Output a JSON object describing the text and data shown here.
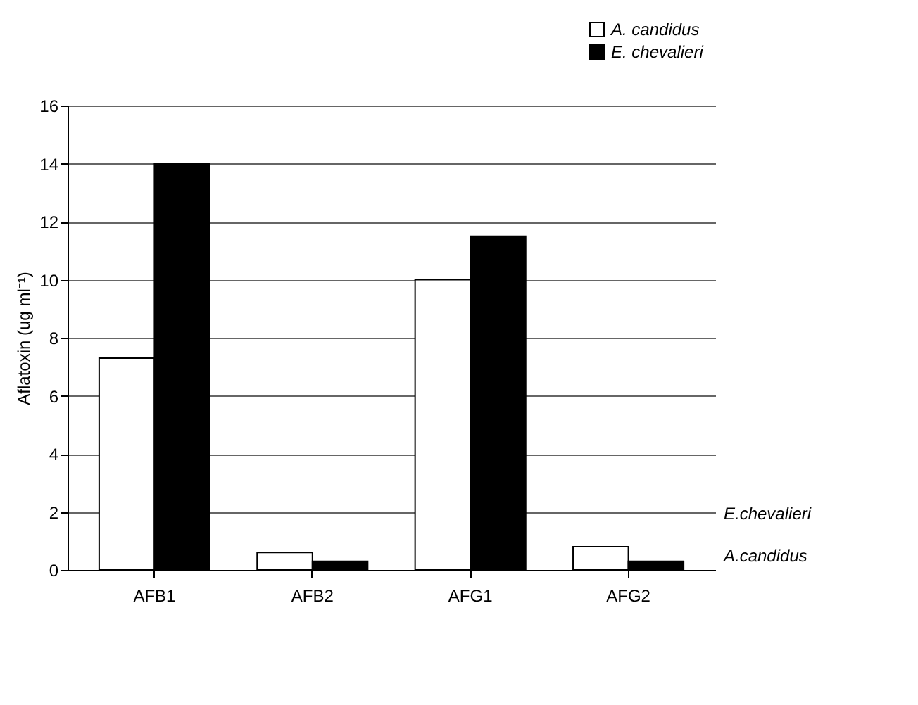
{
  "chart_data": {
    "type": "bar",
    "ylabel": "Aflatoxin (ug ml⁻¹)",
    "categories": [
      "AFB1",
      "AFB2",
      "AFG1",
      "AFG2"
    ],
    "series": [
      {
        "name": "A. candidus",
        "color": "#ffffff",
        "values": [
          7.3,
          0.6,
          10,
          0.8
        ]
      },
      {
        "name": "E. chevalieri",
        "color": "#000000",
        "values": [
          14,
          0.3,
          11.5,
          0.3
        ]
      }
    ],
    "ylim": [
      0,
      16
    ],
    "yticks": [
      0,
      2,
      4,
      6,
      8,
      10,
      12,
      14,
      16
    ],
    "grid": "y",
    "legend": "top right",
    "annotations": [
      "E.chevalieri",
      "A.candidus"
    ]
  }
}
